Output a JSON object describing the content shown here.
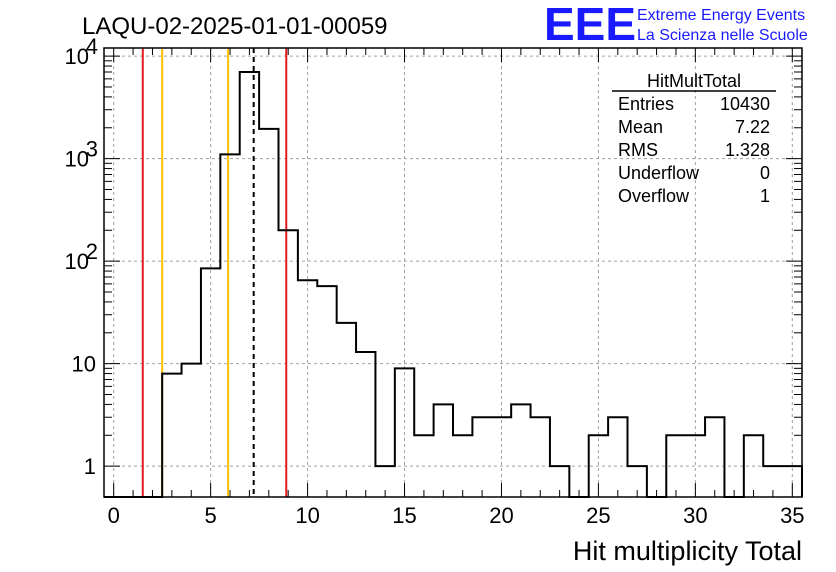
{
  "header": {
    "title": "LAQU-02-2025-01-01-00059",
    "logo_text": "EEE",
    "logo_line1": "Extreme Energy Events",
    "logo_line2": "La Scienza nelle Scuole"
  },
  "stats": {
    "name": "HitMultTotal",
    "rows": [
      {
        "label": "Entries",
        "value": "10430"
      },
      {
        "label": "Mean",
        "value": "7.22"
      },
      {
        "label": "RMS",
        "value": "1.328"
      },
      {
        "label": "Underflow",
        "value": "0"
      },
      {
        "label": "Overflow",
        "value": "1"
      }
    ]
  },
  "chart_data": {
    "type": "bar",
    "style": "step-histogram",
    "xlabel": "Hit multiplicity Total",
    "ylabel": "",
    "xlim": [
      -0.5,
      35.5
    ],
    "ylim": [
      0.5,
      12000
    ],
    "yscale": "log",
    "grid": true,
    "bin_edges": [
      -0.5,
      0.5,
      1.5,
      2.5,
      3.5,
      4.5,
      5.5,
      6.5,
      7.5,
      8.5,
      9.5,
      10.5,
      11.5,
      12.5,
      13.5,
      14.5,
      15.5,
      16.5,
      17.5,
      18.5,
      19.5,
      20.5,
      21.5,
      22.5,
      23.5,
      24.5,
      25.5,
      26.5,
      27.5,
      28.5,
      29.5,
      30.5,
      31.5,
      32.5,
      33.5,
      34.5,
      35.5
    ],
    "values": [
      0,
      0,
      0,
      8,
      10,
      85,
      1100,
      7000,
      1950,
      200,
      65,
      57,
      25,
      13,
      1,
      9,
      2,
      4,
      2,
      3,
      3,
      4,
      3,
      1,
      0,
      2,
      3,
      1,
      0,
      2,
      2,
      3,
      0,
      2,
      1,
      1
    ],
    "x_ticks": [
      0,
      5,
      10,
      15,
      20,
      25,
      30,
      35
    ],
    "x_tick_labels": [
      "0",
      "5",
      "10",
      "15",
      "20",
      "25",
      "30",
      "35"
    ],
    "y_ticks": [
      1,
      10,
      100,
      1000,
      10000
    ],
    "y_tick_labels": [
      {
        "base": "1",
        "exp": ""
      },
      {
        "base": "10",
        "exp": ""
      },
      {
        "base": "10",
        "exp": "2"
      },
      {
        "base": "10",
        "exp": "3"
      },
      {
        "base": "10",
        "exp": "4"
      }
    ],
    "vertical_lines": [
      {
        "x": 1.5,
        "color": "#e41a1c",
        "style": "solid"
      },
      {
        "x": 2.5,
        "color": "#ffc000",
        "style": "solid"
      },
      {
        "x": 5.9,
        "color": "#ffc000",
        "style": "solid"
      },
      {
        "x": 7.22,
        "color": "#000000",
        "style": "dashed"
      },
      {
        "x": 8.9,
        "color": "#e41a1c",
        "style": "solid"
      }
    ]
  }
}
